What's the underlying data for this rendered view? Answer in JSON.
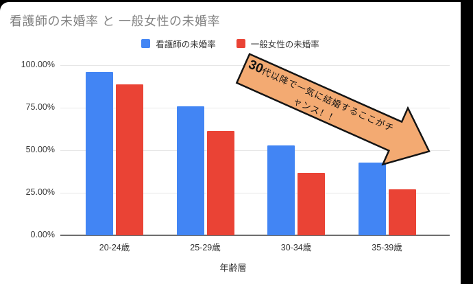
{
  "frame": {
    "background": "#000000",
    "card_background": "#ffffff"
  },
  "chart_data": {
    "type": "bar",
    "title": "看護師の未婚率 と 一般女性の未婚率",
    "xlabel": "年齢層",
    "ylabel": "",
    "ylim": [
      0,
      100
    ],
    "grid": true,
    "legend_position": "top",
    "categories": [
      "20-24歳",
      "25-29歳",
      "30-34歳",
      "35-39歳"
    ],
    "series": [
      {
        "key": "nurse",
        "name": "看護師の未婚率",
        "color": "#4285f4",
        "values": [
          95.9,
          75.8,
          52.8,
          42.7
        ]
      },
      {
        "key": "general",
        "name": "一般女性の未婚率",
        "color": "#ea4335",
        "values": [
          88.7,
          61.3,
          36.7,
          27.0
        ]
      }
    ],
    "y_ticks": [
      {
        "label": "100.00%",
        "value": 100
      },
      {
        "label": "75.00%",
        "value": 75
      },
      {
        "label": "50.00%",
        "value": 50
      },
      {
        "label": "25.00%",
        "value": 25
      },
      {
        "label": "0.00%",
        "value": 0
      }
    ]
  },
  "annotation": {
    "bold_prefix": "30",
    "text": "代以降で一気に結婚するここがチャンス！！",
    "fill": "#f3aa72"
  },
  "colors": {
    "title_text": "#828282",
    "axis_line": "#6e6e6e",
    "gridline": "#e6e6e6",
    "tick_label": "#3a3a3a"
  }
}
